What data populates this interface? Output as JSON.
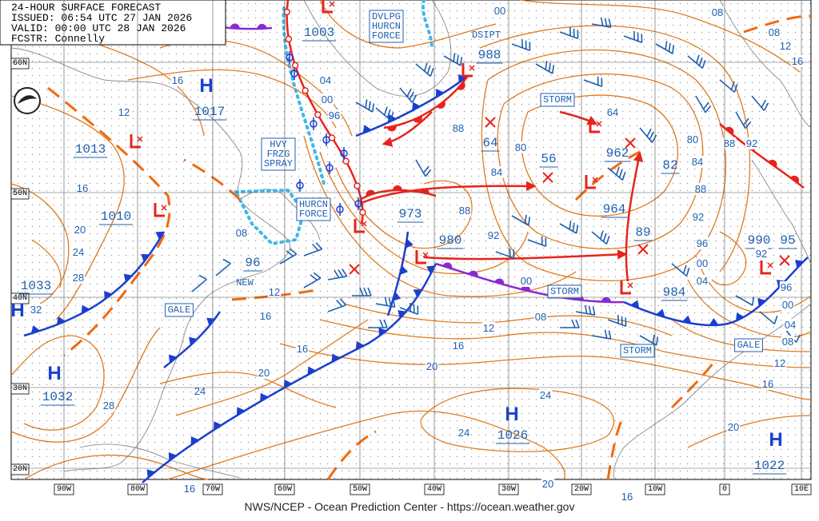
{
  "header": {
    "title": "24-HOUR SURFACE FORECAST",
    "issued": "ISSUED: 06:54 UTC 27 JAN 2026",
    "valid": "VALID: 00:00 UTC 28 JAN 2026",
    "forecaster": "FCSTR: Connelly"
  },
  "latitudes": [
    "60N",
    "50N",
    "40N",
    "30N",
    "20N"
  ],
  "longitudes": [
    "90W",
    "80W",
    "70W",
    "60W",
    "50W",
    "40W",
    "30W",
    "20W",
    "10W",
    "0",
    "10E"
  ],
  "highs": [
    {
      "letter": "H",
      "pressure": 1017
    },
    {
      "letter": "H",
      "pressure": 1032
    },
    {
      "letter": "H",
      "pressure": 1026
    },
    {
      "letter": "H",
      "pressure": 1022
    },
    {
      "letter": "H",
      "pressure": 1033
    }
  ],
  "lows": [
    1003,
    988,
    973,
    980,
    962,
    964,
    984,
    990,
    1013,
    1010,
    64,
    56,
    82,
    89,
    95,
    96
  ],
  "isobar_labels": [
    "16",
    "04",
    "00",
    "96",
    "12",
    "16",
    "20",
    "24",
    "28",
    "08",
    "12",
    "16",
    "16",
    "20",
    "24",
    "28",
    "88",
    "88",
    "92",
    "00",
    "08",
    "12",
    "16",
    "20",
    "24",
    "24",
    "20",
    "16",
    "16",
    "20",
    "16",
    "12",
    "08",
    "04",
    "00",
    "96",
    "92",
    "96",
    "00",
    "04",
    "92",
    "88",
    "84",
    "80",
    "88",
    "92",
    "84",
    "80",
    "00",
    "08",
    "08",
    "12",
    "16",
    "64",
    "32"
  ],
  "warnings": [
    [
      "STORM"
    ],
    [
      "STORM"
    ],
    [
      "STORM"
    ],
    [
      "GALE"
    ],
    [
      "GALE"
    ],
    [
      "HURCN",
      "FORCE"
    ],
    [
      "HVY",
      "FRZG",
      "SPRAY"
    ],
    [
      "DVLPG",
      "HURCN",
      "FORCE"
    ]
  ],
  "notes": [
    "DSIPT",
    "NEW"
  ],
  "footer": "NWS/NCEP - Ocean Prediction Center - https://ocean.weather.gov"
}
